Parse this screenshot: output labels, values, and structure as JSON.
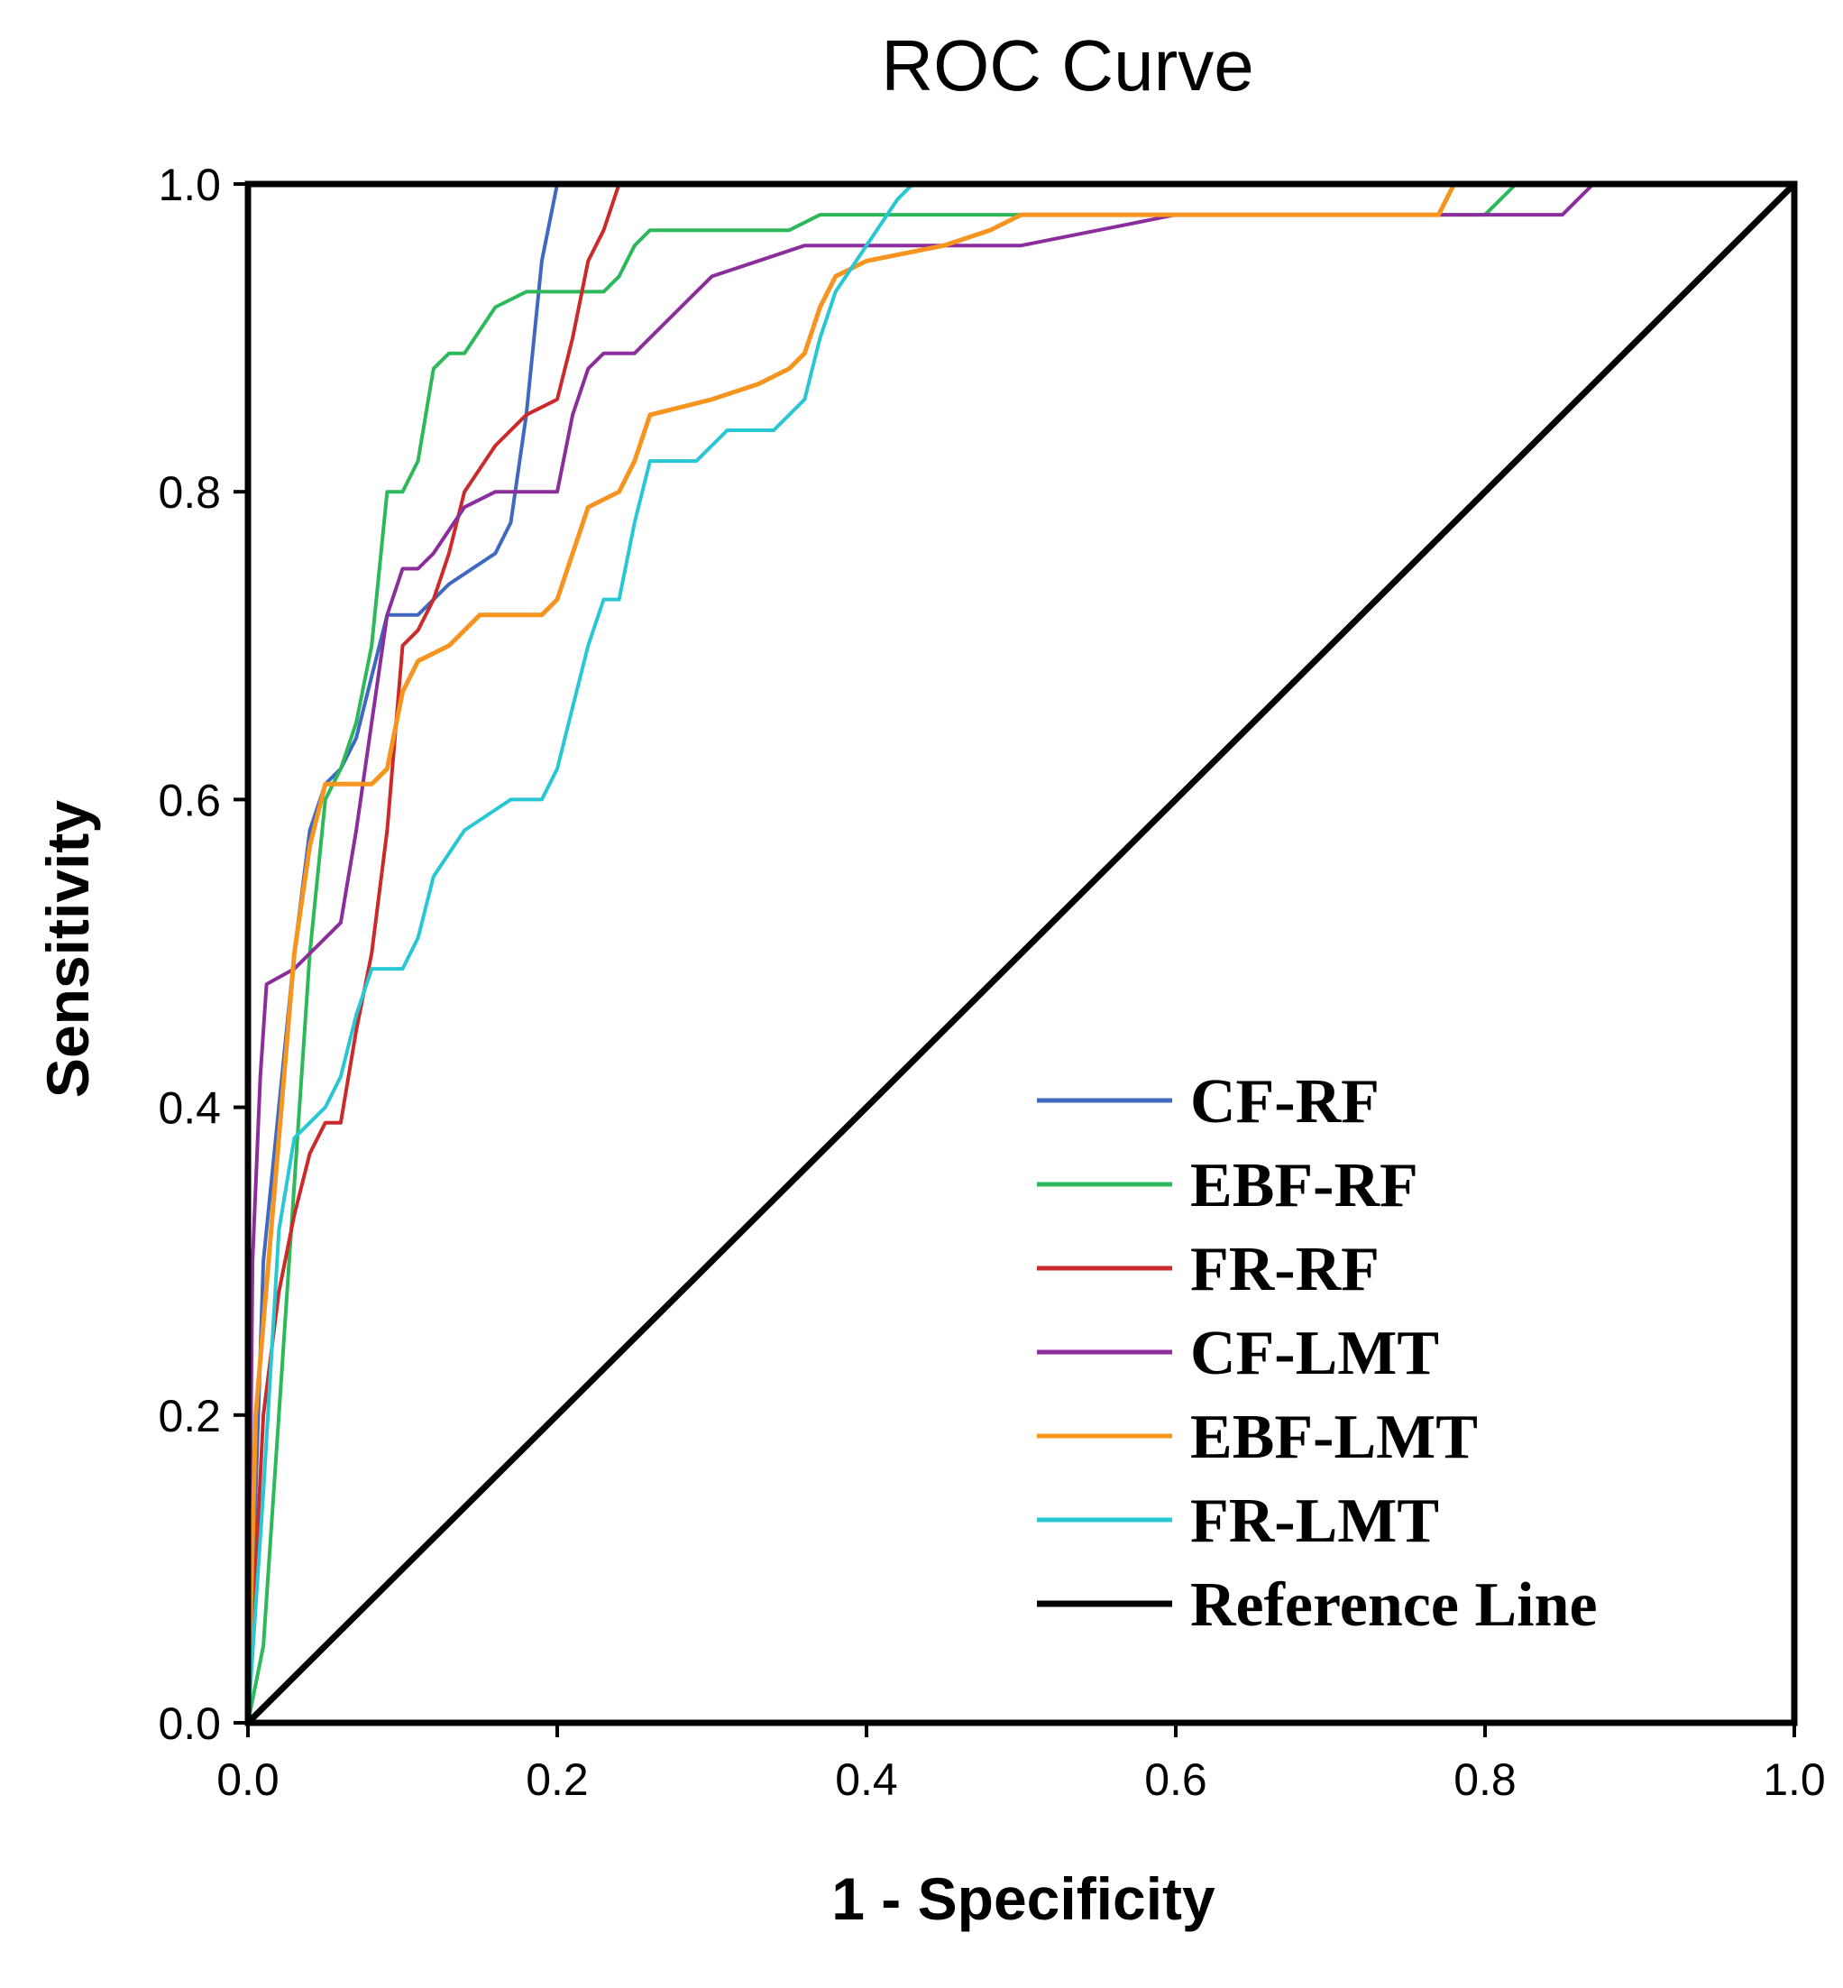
{
  "chart_data": {
    "type": "line",
    "title": "ROC Curve",
    "xlabel": "1 - Specificity",
    "ylabel": "Sensitivity",
    "xlim": [
      0,
      1
    ],
    "ylim": [
      0,
      1
    ],
    "x_ticks": [
      "0.0",
      "0.2",
      "0.4",
      "0.6",
      "0.8",
      "1.0"
    ],
    "y_ticks": [
      "0.0",
      "0.2",
      "0.4",
      "0.6",
      "0.8",
      "1.0"
    ],
    "legend_position": "bottom-right",
    "series": [
      {
        "name": "CF-RF",
        "color": "#3f68c0",
        "points": [
          [
            0,
            0
          ],
          [
            0.005,
            0.15
          ],
          [
            0.01,
            0.3
          ],
          [
            0.02,
            0.4
          ],
          [
            0.03,
            0.5
          ],
          [
            0.04,
            0.58
          ],
          [
            0.05,
            0.61
          ],
          [
            0.06,
            0.62
          ],
          [
            0.07,
            0.64
          ],
          [
            0.08,
            0.68
          ],
          [
            0.09,
            0.72
          ],
          [
            0.1,
            0.72
          ],
          [
            0.11,
            0.72
          ],
          [
            0.13,
            0.74
          ],
          [
            0.16,
            0.76
          ],
          [
            0.17,
            0.78
          ],
          [
            0.18,
            0.85
          ],
          [
            0.19,
            0.95
          ],
          [
            0.2,
            1.0
          ],
          [
            1,
            1
          ]
        ]
      },
      {
        "name": "EBF-RF",
        "color": "#2db85a",
        "points": [
          [
            0,
            0
          ],
          [
            0.01,
            0.05
          ],
          [
            0.02,
            0.2
          ],
          [
            0.03,
            0.35
          ],
          [
            0.04,
            0.5
          ],
          [
            0.05,
            0.6
          ],
          [
            0.06,
            0.62
          ],
          [
            0.07,
            0.65
          ],
          [
            0.08,
            0.7
          ],
          [
            0.09,
            0.8
          ],
          [
            0.1,
            0.8
          ],
          [
            0.11,
            0.82
          ],
          [
            0.12,
            0.88
          ],
          [
            0.13,
            0.89
          ],
          [
            0.14,
            0.89
          ],
          [
            0.16,
            0.92
          ],
          [
            0.18,
            0.93
          ],
          [
            0.23,
            0.93
          ],
          [
            0.24,
            0.94
          ],
          [
            0.25,
            0.96
          ],
          [
            0.26,
            0.97
          ],
          [
            0.35,
            0.97
          ],
          [
            0.37,
            0.98
          ],
          [
            0.5,
            0.98
          ],
          [
            0.8,
            0.98
          ],
          [
            0.82,
            1.0
          ],
          [
            1,
            1
          ]
        ]
      },
      {
        "name": "FR-RF",
        "color": "#cc2a2a",
        "points": [
          [
            0,
            0
          ],
          [
            0.005,
            0.1
          ],
          [
            0.01,
            0.2
          ],
          [
            0.02,
            0.28
          ],
          [
            0.03,
            0.33
          ],
          [
            0.04,
            0.37
          ],
          [
            0.05,
            0.39
          ],
          [
            0.06,
            0.39
          ],
          [
            0.07,
            0.45
          ],
          [
            0.08,
            0.5
          ],
          [
            0.09,
            0.58
          ],
          [
            0.1,
            0.7
          ],
          [
            0.11,
            0.71
          ],
          [
            0.12,
            0.73
          ],
          [
            0.13,
            0.76
          ],
          [
            0.14,
            0.8
          ],
          [
            0.16,
            0.83
          ],
          [
            0.18,
            0.85
          ],
          [
            0.2,
            0.86
          ],
          [
            0.21,
            0.9
          ],
          [
            0.22,
            0.95
          ],
          [
            0.23,
            0.97
          ],
          [
            0.24,
            1.0
          ],
          [
            1,
            1
          ]
        ]
      },
      {
        "name": "CF-LMT",
        "color": "#8b2d9b",
        "points": [
          [
            0,
            0
          ],
          [
            0.003,
            0.3
          ],
          [
            0.008,
            0.42
          ],
          [
            0.012,
            0.48
          ],
          [
            0.03,
            0.49
          ],
          [
            0.04,
            0.5
          ],
          [
            0.05,
            0.51
          ],
          [
            0.06,
            0.52
          ],
          [
            0.07,
            0.58
          ],
          [
            0.08,
            0.65
          ],
          [
            0.09,
            0.72
          ],
          [
            0.1,
            0.75
          ],
          [
            0.11,
            0.75
          ],
          [
            0.12,
            0.76
          ],
          [
            0.14,
            0.79
          ],
          [
            0.16,
            0.8
          ],
          [
            0.19,
            0.8
          ],
          [
            0.2,
            0.8
          ],
          [
            0.21,
            0.85
          ],
          [
            0.22,
            0.88
          ],
          [
            0.23,
            0.89
          ],
          [
            0.25,
            0.89
          ],
          [
            0.26,
            0.9
          ],
          [
            0.28,
            0.92
          ],
          [
            0.3,
            0.94
          ],
          [
            0.33,
            0.95
          ],
          [
            0.36,
            0.96
          ],
          [
            0.5,
            0.96
          ],
          [
            0.55,
            0.97
          ],
          [
            0.6,
            0.98
          ],
          [
            0.75,
            0.98
          ],
          [
            0.85,
            0.98
          ],
          [
            0.87,
            1.0
          ],
          [
            1,
            1
          ]
        ]
      },
      {
        "name": "EBF-LMT",
        "color": "#f5941e",
        "points": [
          [
            0,
            0
          ],
          [
            0.005,
            0.2
          ],
          [
            0.02,
            0.38
          ],
          [
            0.03,
            0.5
          ],
          [
            0.04,
            0.57
          ],
          [
            0.05,
            0.61
          ],
          [
            0.08,
            0.61
          ],
          [
            0.09,
            0.62
          ],
          [
            0.1,
            0.67
          ],
          [
            0.11,
            0.69
          ],
          [
            0.13,
            0.7
          ],
          [
            0.15,
            0.72
          ],
          [
            0.19,
            0.72
          ],
          [
            0.2,
            0.73
          ],
          [
            0.21,
            0.76
          ],
          [
            0.22,
            0.79
          ],
          [
            0.24,
            0.8
          ],
          [
            0.25,
            0.82
          ],
          [
            0.26,
            0.85
          ],
          [
            0.3,
            0.86
          ],
          [
            0.33,
            0.87
          ],
          [
            0.35,
            0.88
          ],
          [
            0.36,
            0.89
          ],
          [
            0.37,
            0.92
          ],
          [
            0.38,
            0.94
          ],
          [
            0.4,
            0.95
          ],
          [
            0.45,
            0.96
          ],
          [
            0.48,
            0.97
          ],
          [
            0.5,
            0.98
          ],
          [
            0.77,
            0.98
          ],
          [
            0.78,
            1.0
          ],
          [
            1,
            1
          ]
        ]
      },
      {
        "name": "FR-LMT",
        "color": "#27c7d3",
        "points": [
          [
            0,
            0
          ],
          [
            0.01,
            0.15
          ],
          [
            0.02,
            0.32
          ],
          [
            0.03,
            0.38
          ],
          [
            0.05,
            0.4
          ],
          [
            0.06,
            0.42
          ],
          [
            0.07,
            0.46
          ],
          [
            0.08,
            0.49
          ],
          [
            0.1,
            0.49
          ],
          [
            0.11,
            0.51
          ],
          [
            0.12,
            0.55
          ],
          [
            0.14,
            0.58
          ],
          [
            0.17,
            0.6
          ],
          [
            0.19,
            0.6
          ],
          [
            0.2,
            0.62
          ],
          [
            0.21,
            0.66
          ],
          [
            0.22,
            0.7
          ],
          [
            0.23,
            0.73
          ],
          [
            0.24,
            0.73
          ],
          [
            0.25,
            0.78
          ],
          [
            0.26,
            0.82
          ],
          [
            0.29,
            0.82
          ],
          [
            0.31,
            0.84
          ],
          [
            0.34,
            0.84
          ],
          [
            0.36,
            0.86
          ],
          [
            0.37,
            0.9
          ],
          [
            0.38,
            0.93
          ],
          [
            0.4,
            0.96
          ],
          [
            0.42,
            0.99
          ],
          [
            0.43,
            1.0
          ],
          [
            1,
            1
          ]
        ]
      },
      {
        "name": "Reference Line",
        "color": "#000000",
        "points": [
          [
            0,
            0
          ],
          [
            1,
            1
          ]
        ]
      }
    ]
  }
}
